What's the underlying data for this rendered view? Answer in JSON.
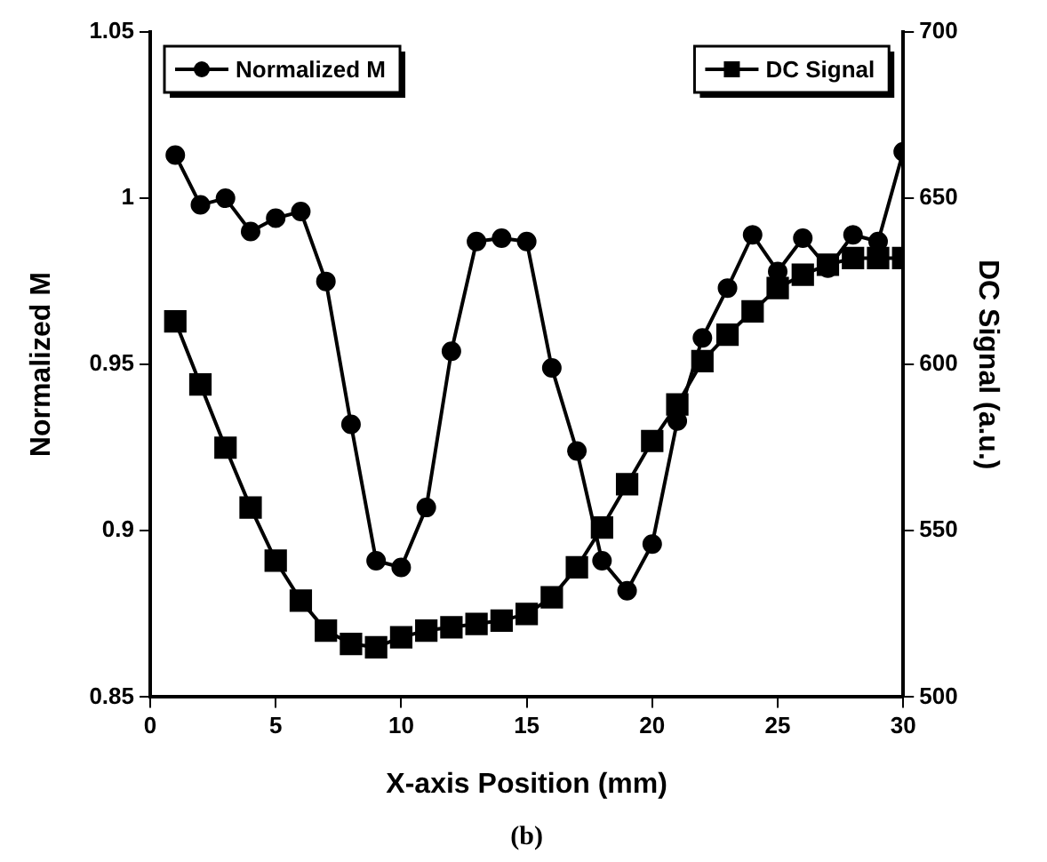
{
  "chart_data": {
    "type": "line",
    "xlabel": "X-axis Position (mm)",
    "ylabel": "Normalized M",
    "y2label": "DC Signal (a.u.)",
    "x": [
      1,
      2,
      3,
      4,
      5,
      6,
      7,
      8,
      9,
      10,
      11,
      12,
      13,
      14,
      15,
      16,
      17,
      18,
      19,
      20,
      21,
      22,
      23,
      24,
      25,
      26,
      27,
      28,
      29,
      30
    ],
    "series": [
      {
        "name": "Normalized M",
        "color": "#000000",
        "marker": "circle",
        "values": [
          1.013,
          0.998,
          1.0,
          0.99,
          0.994,
          0.996,
          0.975,
          0.932,
          0.891,
          0.889,
          0.907,
          0.954,
          0.987,
          0.988,
          0.987,
          0.949,
          0.924,
          0.891,
          0.882,
          0.896,
          0.933,
          0.958,
          0.973,
          0.989,
          0.978,
          0.988,
          0.979,
          0.989,
          0.987,
          1.014
        ]
      },
      {
        "name": "DC Signal",
        "color": "#000000",
        "marker": "square",
        "axis": "y2",
        "values": [
          613,
          594,
          575,
          557,
          541,
          529,
          520,
          516,
          515,
          518,
          520,
          521,
          522,
          523,
          525,
          530,
          539,
          551,
          564,
          577,
          588,
          601,
          609,
          616,
          623,
          627,
          630,
          632,
          632,
          632
        ]
      }
    ],
    "xlim": [
      0,
      30
    ],
    "xticks": [
      0,
      5,
      10,
      15,
      20,
      25,
      30
    ],
    "ylim": [
      0.85,
      1.05
    ],
    "yticks": [
      0.85,
      0.9,
      0.95,
      1,
      1.05
    ],
    "y2lim": [
      500,
      700
    ],
    "y2ticks": [
      500,
      550,
      600,
      650,
      700
    ],
    "legend": "top",
    "grid": false,
    "line_style": "solid",
    "annotations": [
      "(b)"
    ]
  }
}
